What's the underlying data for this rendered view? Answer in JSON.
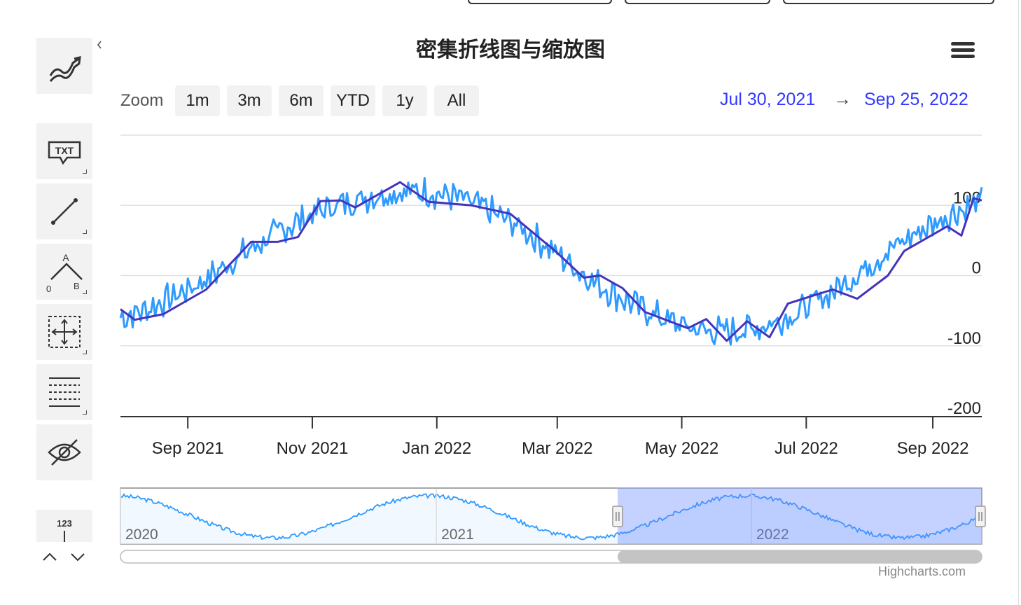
{
  "chart_data": {
    "type": "line",
    "title": "密集折线图与缩放图",
    "range_selector": {
      "label": "Zoom",
      "buttons": [
        "1m",
        "3m",
        "6m",
        "YTD",
        "1y",
        "All"
      ],
      "from": "Jul 30, 2021",
      "to": "Sep 25, 2022"
    },
    "x_ticks": [
      "Sep 2021",
      "Nov 2021",
      "Jan 2022",
      "Mar 2022",
      "May 2022",
      "Jul 2022",
      "Sep 2022"
    ],
    "y_ticks": [
      "100",
      "0",
      "-100",
      "-200"
    ],
    "ylim": [
      -200,
      200
    ],
    "xlim": [
      "2021-07-30",
      "2022-09-25"
    ],
    "series": [
      {
        "color": "#2f9bff",
        "smooth": [
          [
            "2021-07-30",
            -60
          ],
          [
            "2021-08-10",
            -50
          ],
          [
            "2021-08-25",
            -30
          ],
          [
            "2021-09-10",
            -5
          ],
          [
            "2021-09-25",
            25
          ],
          [
            "2021-10-10",
            52
          ],
          [
            "2021-10-25",
            78
          ],
          [
            "2021-11-10",
            98
          ],
          [
            "2021-11-25",
            110
          ],
          [
            "2021-12-10",
            118
          ],
          [
            "2021-12-25",
            120
          ],
          [
            "2022-01-10",
            112
          ],
          [
            "2022-01-25",
            95
          ],
          [
            "2022-02-10",
            70
          ],
          [
            "2022-02-25",
            40
          ],
          [
            "2022-03-10",
            10
          ],
          [
            "2022-03-25",
            -20
          ],
          [
            "2022-04-10",
            -45
          ],
          [
            "2022-04-25",
            -65
          ],
          [
            "2022-05-10",
            -78
          ],
          [
            "2022-05-25",
            -80
          ],
          [
            "2022-06-10",
            -72
          ],
          [
            "2022-06-25",
            -55
          ],
          [
            "2022-07-10",
            -30
          ],
          [
            "2022-07-25",
            0
          ],
          [
            "2022-08-10",
            35
          ],
          [
            "2022-08-25",
            62
          ],
          [
            "2022-09-10",
            88
          ],
          [
            "2022-09-25",
            105
          ]
        ],
        "noise_amplitude": 18
      },
      {
        "color": "#4433bb",
        "points": [
          [
            "2021-07-30",
            -48
          ],
          [
            "2021-08-06",
            -63
          ],
          [
            "2021-08-20",
            -55
          ],
          [
            "2021-09-10",
            -20
          ],
          [
            "2021-10-02",
            48
          ],
          [
            "2021-10-15",
            48
          ],
          [
            "2021-10-25",
            55
          ],
          [
            "2021-11-05",
            106
          ],
          [
            "2021-11-15",
            107
          ],
          [
            "2021-11-22",
            97
          ],
          [
            "2021-12-14",
            133
          ],
          [
            "2021-12-28",
            105
          ],
          [
            "2022-01-18",
            100
          ],
          [
            "2022-02-06",
            88
          ],
          [
            "2022-02-28",
            35
          ],
          [
            "2022-03-14",
            -3
          ],
          [
            "2022-03-22",
            0
          ],
          [
            "2022-04-02",
            -18
          ],
          [
            "2022-04-13",
            -52
          ],
          [
            "2022-05-04",
            -75
          ],
          [
            "2022-05-13",
            -62
          ],
          [
            "2022-05-23",
            -93
          ],
          [
            "2022-06-02",
            -65
          ],
          [
            "2022-06-13",
            -88
          ],
          [
            "2022-06-22",
            -40
          ],
          [
            "2022-07-05",
            -28
          ],
          [
            "2022-07-14",
            -20
          ],
          [
            "2022-07-26",
            -33
          ],
          [
            "2022-08-10",
            0
          ],
          [
            "2022-08-18",
            35
          ],
          [
            "2022-09-08",
            70
          ],
          [
            "2022-09-15",
            57
          ],
          [
            "2022-09-21",
            110
          ],
          [
            "2022-09-25",
            107
          ]
        ]
      }
    ],
    "grid": true,
    "navigator": {
      "year_labels": [
        "2020",
        "2021",
        "2022"
      ],
      "period": "2020–2022",
      "selected_from": "Jul 30, 2021",
      "selected_to": "Sep 25, 2022"
    }
  },
  "toolbar": {
    "icons": [
      "indicators-icon",
      "text-annotation-icon",
      "line-drawing-icon",
      "measure-icon",
      "crosshair-icon",
      "grid-lines-icon",
      "visibility-icon",
      "number-label-icon"
    ],
    "txt_label": "TXT",
    "measure_labels": [
      "A",
      "0",
      "B"
    ],
    "number_label": "123"
  },
  "credit": "Highcharts.com"
}
